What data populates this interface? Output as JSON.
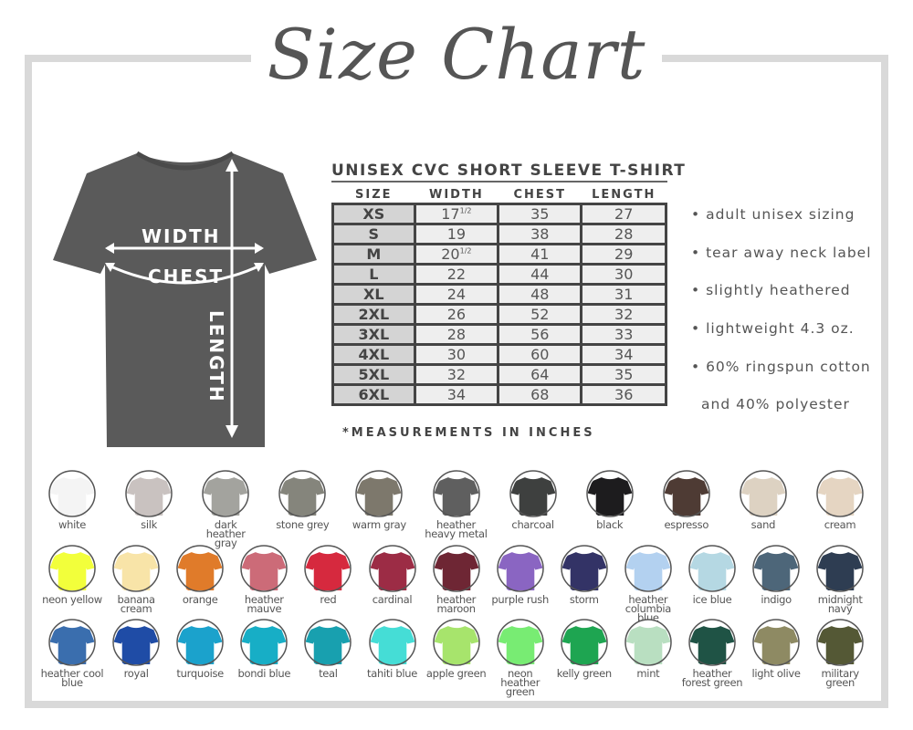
{
  "title": "Size Chart",
  "diagram": {
    "width_label": "WIDTH",
    "chest_label": "CHEST",
    "length_label": "LENGTH",
    "shirt_color": "#5a5a5a"
  },
  "table": {
    "title": "UNISEX CVC SHORT SLEEVE T-SHIRT",
    "headers": [
      "SIZE",
      "WIDTH",
      "CHEST",
      "LENGTH"
    ],
    "rows": [
      {
        "size": "XS",
        "width": "17",
        "width_frac": "1/2",
        "chest": "35",
        "length": "27"
      },
      {
        "size": "S",
        "width": "19",
        "width_frac": "",
        "chest": "38",
        "length": "28"
      },
      {
        "size": "M",
        "width": "20",
        "width_frac": "1/2",
        "chest": "41",
        "length": "29"
      },
      {
        "size": "L",
        "width": "22",
        "width_frac": "",
        "chest": "44",
        "length": "30"
      },
      {
        "size": "XL",
        "width": "24",
        "width_frac": "",
        "chest": "48",
        "length": "31"
      },
      {
        "size": "2XL",
        "width": "26",
        "width_frac": "",
        "chest": "52",
        "length": "32"
      },
      {
        "size": "3XL",
        "width": "28",
        "width_frac": "",
        "chest": "56",
        "length": "33"
      },
      {
        "size": "4XL",
        "width": "30",
        "width_frac": "",
        "chest": "60",
        "length": "34"
      },
      {
        "size": "5XL",
        "width": "32",
        "width_frac": "",
        "chest": "64",
        "length": "35"
      },
      {
        "size": "6XL",
        "width": "34",
        "width_frac": "",
        "chest": "68",
        "length": "36"
      }
    ],
    "note": "*MEASUREMENTS IN INCHES"
  },
  "features": [
    "• adult unisex sizing",
    "• tear away neck label",
    "• slightly heathered",
    "• lightweight 4.3 oz.",
    "• 60% ringspun cotton",
    "and 40% polyester"
  ],
  "colors": [
    [
      {
        "name": "white",
        "hex": "#f4f4f4"
      },
      {
        "name": "silk",
        "hex": "#c9c2c0"
      },
      {
        "name": "dark heather gray",
        "hex": "#a3a39e"
      },
      {
        "name": "stone grey",
        "hex": "#85857c"
      },
      {
        "name": "warm gray",
        "hex": "#7d786c"
      },
      {
        "name": "heather heavy metal",
        "hex": "#5f5f5f"
      },
      {
        "name": "charcoal",
        "hex": "#3e403f"
      },
      {
        "name": "black",
        "hex": "#1d1c1e"
      },
      {
        "name": "espresso",
        "hex": "#4e3b34"
      },
      {
        "name": "sand",
        "hex": "#ddd2c2"
      },
      {
        "name": "cream",
        "hex": "#e5d5c2"
      }
    ],
    [
      {
        "name": "neon yellow",
        "hex": "#f2ff3b"
      },
      {
        "name": "banana cream",
        "hex": "#f8e4a8"
      },
      {
        "name": "orange",
        "hex": "#e07b2a"
      },
      {
        "name": "heather mauve",
        "hex": "#cc6b78"
      },
      {
        "name": "red",
        "hex": "#d6293e"
      },
      {
        "name": "cardinal",
        "hex": "#9c2c45"
      },
      {
        "name": "heather maroon",
        "hex": "#6e2634"
      },
      {
        "name": "purple rush",
        "hex": "#8a65c2"
      },
      {
        "name": "storm",
        "hex": "#333366"
      },
      {
        "name": "heather columbia blue",
        "hex": "#b3d1f0"
      },
      {
        "name": "ice blue",
        "hex": "#b5d8e3"
      },
      {
        "name": "indigo",
        "hex": "#4d6679"
      },
      {
        "name": "midnight navy",
        "hex": "#2e3d52"
      }
    ],
    [
      {
        "name": "heather cool blue",
        "hex": "#3a6eae"
      },
      {
        "name": "royal",
        "hex": "#1f4ca6"
      },
      {
        "name": "turquoise",
        "hex": "#1ba2cc"
      },
      {
        "name": "bondi blue",
        "hex": "#17aec6"
      },
      {
        "name": "teal",
        "hex": "#18a0af"
      },
      {
        "name": "tahiti blue",
        "hex": "#45ddd6"
      },
      {
        "name": "apple green",
        "hex": "#a7e46c"
      },
      {
        "name": "neon heather green",
        "hex": "#78ec73"
      },
      {
        "name": "kelly green",
        "hex": "#1ea551"
      },
      {
        "name": "mint",
        "hex": "#b9dfc1"
      },
      {
        "name": "heather forest green",
        "hex": "#1f5345"
      },
      {
        "name": "light olive",
        "hex": "#8e8a63"
      },
      {
        "name": "military green",
        "hex": "#545835"
      }
    ]
  ]
}
